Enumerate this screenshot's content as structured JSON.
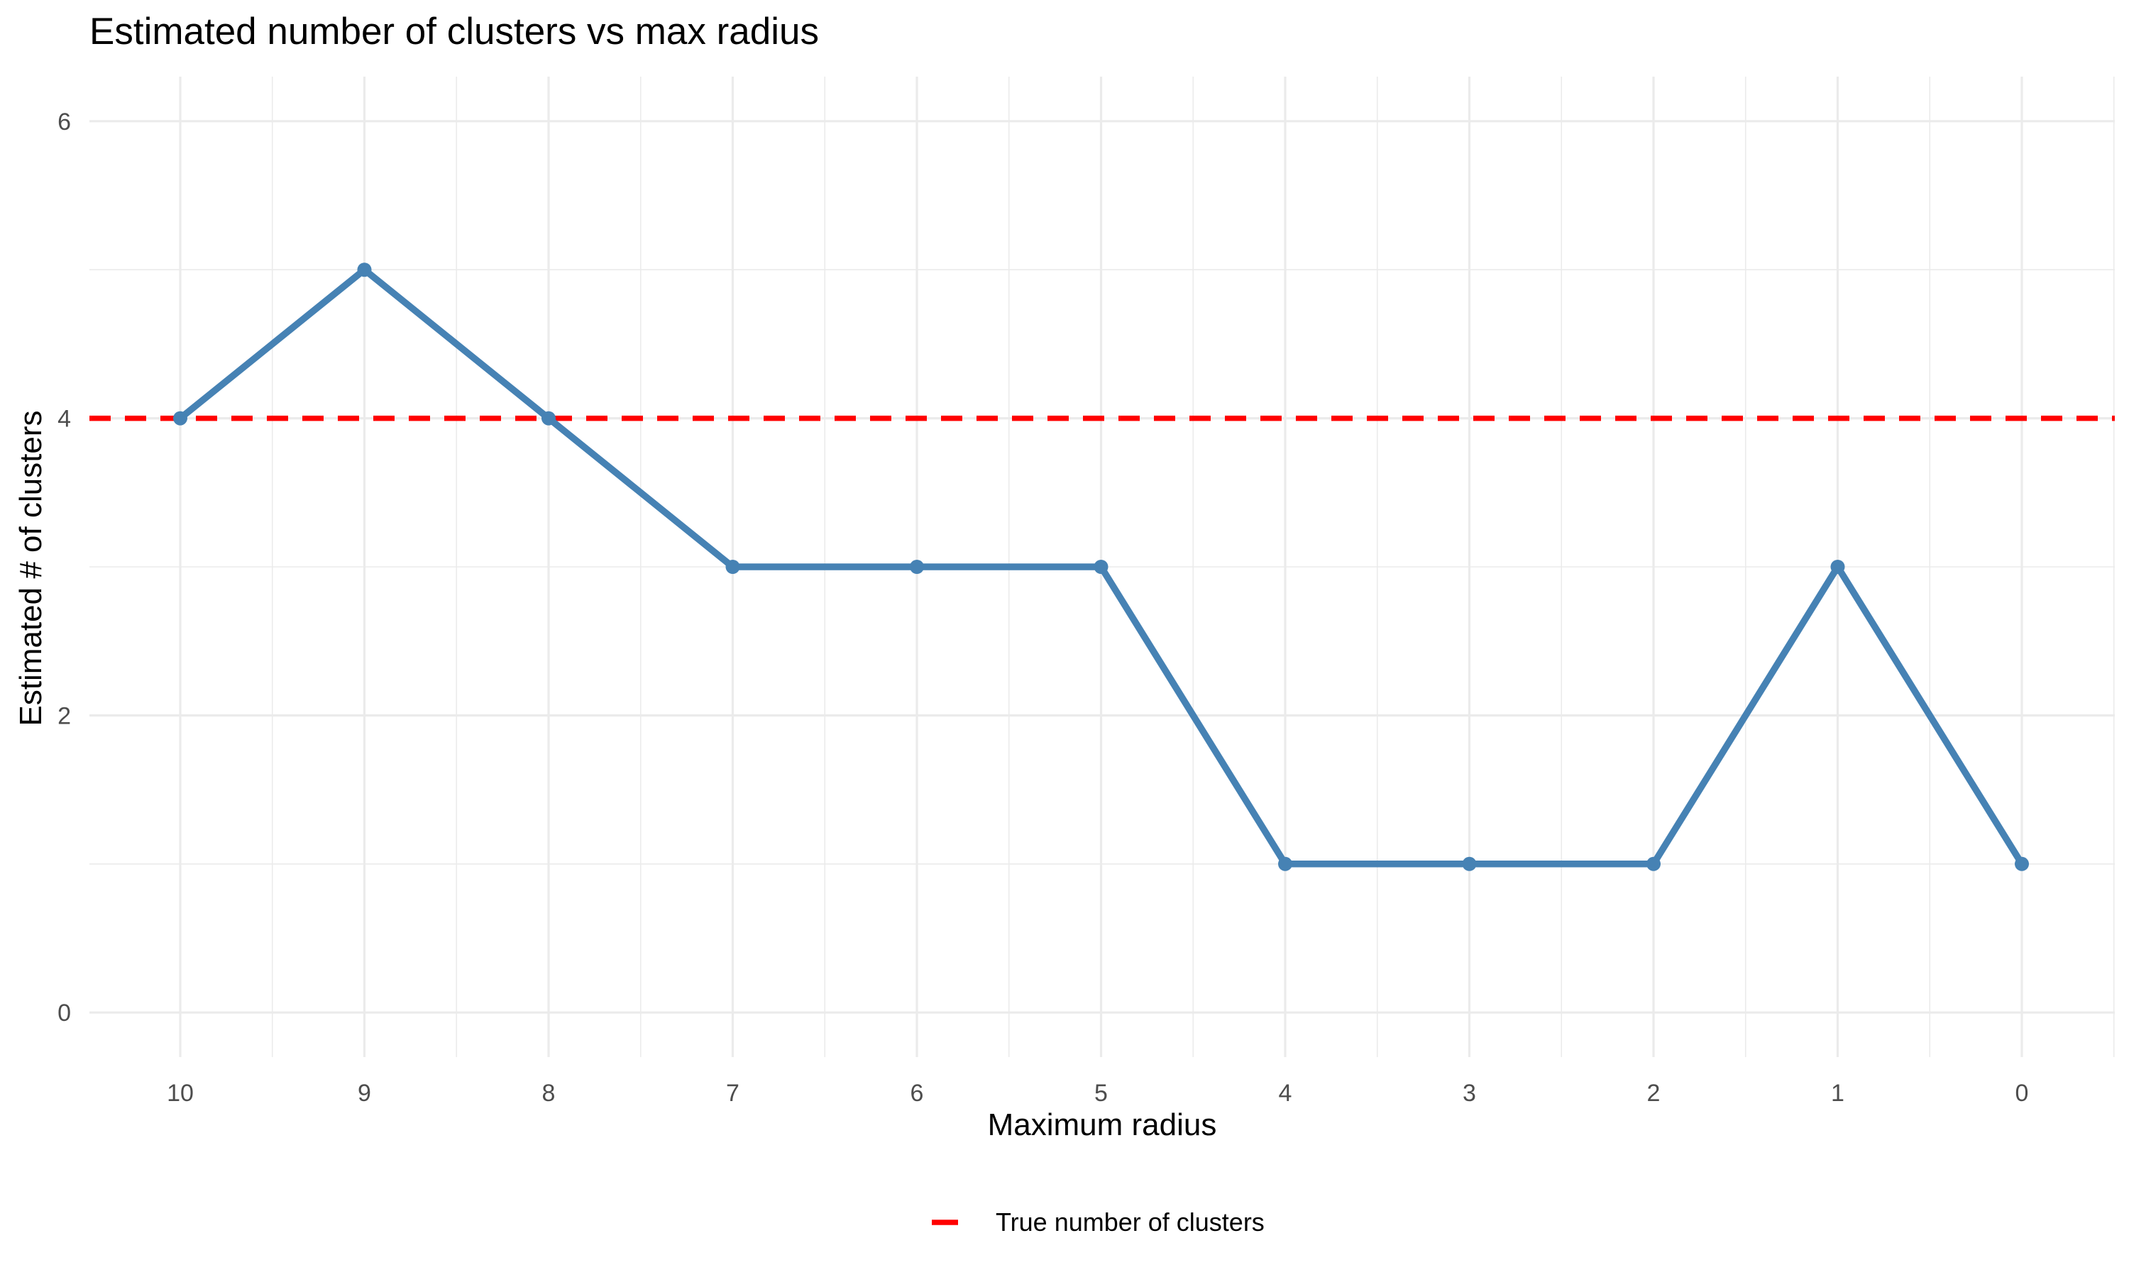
{
  "chart_data": {
    "type": "line",
    "title": "Estimated number of clusters vs max radius",
    "xlabel": "Maximum radius",
    "ylabel": "Estimated # of clusters",
    "categories": [
      "10",
      "9",
      "8",
      "7",
      "6",
      "5",
      "4",
      "3",
      "2",
      "1",
      "0"
    ],
    "series": [
      {
        "values": [
          4,
          5,
          4,
          3,
          3,
          3,
          1,
          1,
          1,
          3,
          1
        ],
        "color": "#4682b4",
        "style": "solid line with point markers"
      }
    ],
    "reference_line": {
      "name": "True number of clusters",
      "y": 4,
      "color": "#ff0000",
      "style": "dashed"
    },
    "ylim": [
      -0.3,
      6.3
    ],
    "yticks": [
      0,
      2,
      4,
      6
    ],
    "grid": true,
    "legend_position": "bottom"
  }
}
